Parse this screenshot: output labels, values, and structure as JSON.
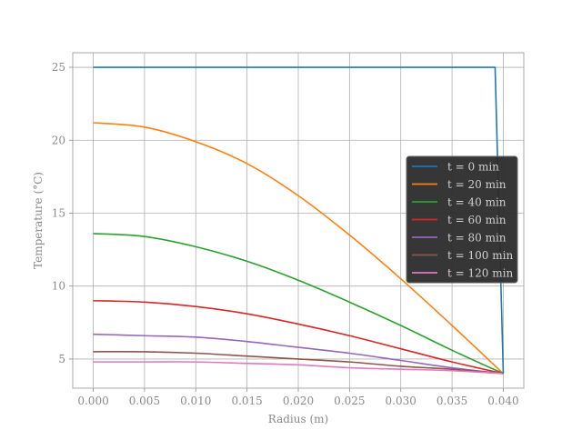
{
  "chart_data": {
    "type": "line",
    "title": "",
    "xlabel": "Radius (m)",
    "ylabel": "Temperature (°C)",
    "xlim": [
      -0.002,
      0.042
    ],
    "ylim": [
      3,
      26
    ],
    "grid": true,
    "legend_position": "center-right",
    "x_ticks": [
      0.0,
      0.005,
      0.01,
      0.015,
      0.02,
      0.025,
      0.03,
      0.035,
      0.04
    ],
    "x_tick_labels": [
      "0.000",
      "0.005",
      "0.010",
      "0.015",
      "0.020",
      "0.025",
      "0.030",
      "0.035",
      "0.040"
    ],
    "y_ticks": [
      5,
      10,
      15,
      20,
      25
    ],
    "y_tick_labels": [
      "5",
      "10",
      "15",
      "20",
      "25"
    ],
    "x": [
      0.0,
      0.005,
      0.01,
      0.015,
      0.02,
      0.025,
      0.03,
      0.035,
      0.04
    ],
    "series": [
      {
        "name": "t = 0 min",
        "color": "#1f77b4",
        "points": [
          [
            0.0,
            25.0
          ],
          [
            0.0392,
            25.0
          ],
          [
            0.04,
            4.0
          ]
        ]
      },
      {
        "name": "t = 20 min",
        "color": "#ff7f0e",
        "values": [
          21.2,
          20.9,
          19.9,
          18.4,
          16.2,
          13.5,
          10.5,
          7.3,
          4.0
        ]
      },
      {
        "name": "t = 40 min",
        "color": "#2ca02c",
        "values": [
          13.6,
          13.4,
          12.7,
          11.7,
          10.4,
          8.9,
          7.3,
          5.6,
          4.0
        ]
      },
      {
        "name": "t = 60 min",
        "color": "#d62728",
        "values": [
          9.0,
          8.9,
          8.6,
          8.1,
          7.4,
          6.6,
          5.7,
          4.8,
          4.0
        ]
      },
      {
        "name": "t = 80 min",
        "color": "#9467bd",
        "values": [
          6.7,
          6.6,
          6.5,
          6.2,
          5.8,
          5.4,
          4.9,
          4.4,
          4.0
        ]
      },
      {
        "name": "t = 100 min",
        "color": "#8c564b",
        "values": [
          5.5,
          5.5,
          5.4,
          5.2,
          5.0,
          4.8,
          4.5,
          4.3,
          4.0
        ]
      },
      {
        "name": "t = 120 min",
        "color": "#e377c2",
        "values": [
          4.8,
          4.8,
          4.8,
          4.7,
          4.6,
          4.4,
          4.3,
          4.2,
          4.0
        ]
      }
    ]
  }
}
